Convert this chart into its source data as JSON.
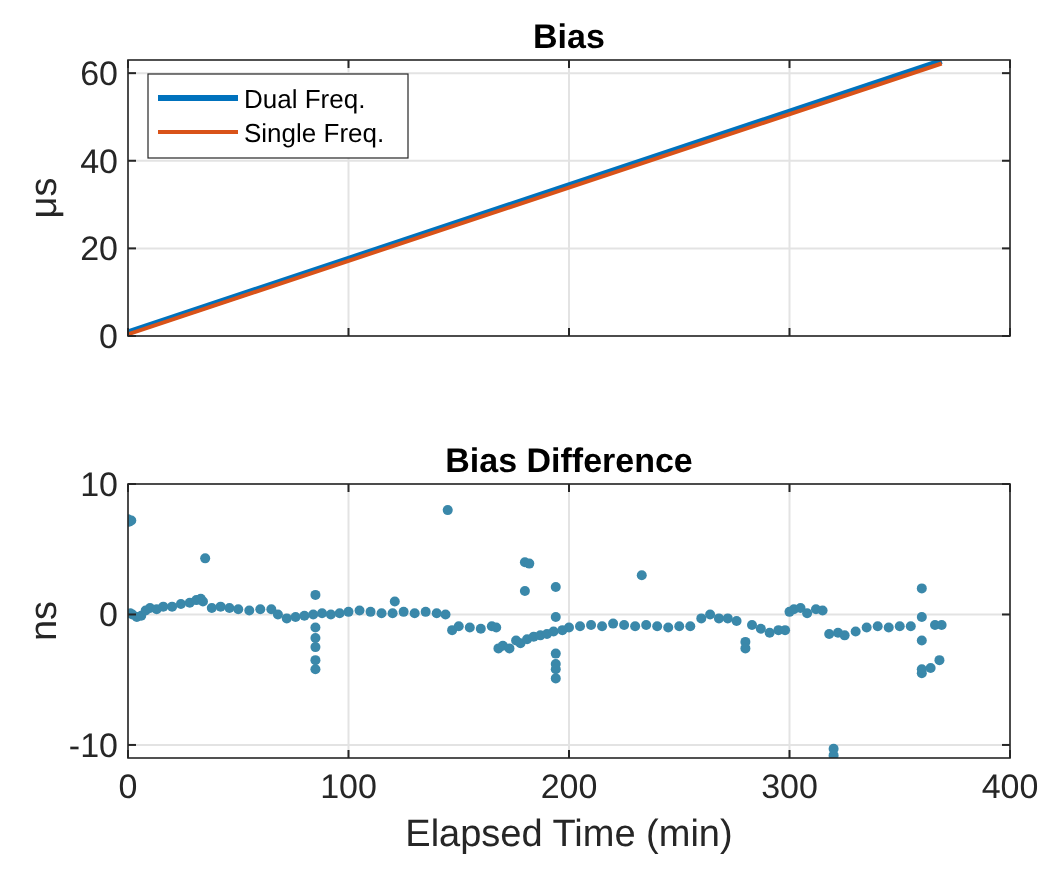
{
  "chart_data": [
    {
      "type": "line",
      "title": "Bias",
      "ylabel": "μs",
      "xlim": [
        0,
        400
      ],
      "xticks": [
        0,
        100,
        200,
        300,
        400
      ],
      "ylim": [
        0,
        63
      ],
      "yticks": [
        0,
        20,
        40,
        60
      ],
      "grid": true,
      "legend": "top left",
      "tick_labels": "y",
      "series": [
        {
          "name": "Dual Freq.",
          "color": "#0072bd",
          "x": [
            0,
            369
          ],
          "values": [
            0.8,
            62.8
          ]
        },
        {
          "name": "Single Freq.",
          "color": "#d95319",
          "x": [
            0,
            369
          ],
          "values": [
            0.4,
            62.2
          ]
        }
      ]
    },
    {
      "type": "scatter",
      "title": "Bias Difference",
      "xlabel": "Elapsed Time (min)",
      "ylabel": "ns",
      "xlim": [
        0,
        400
      ],
      "xticks": [
        0,
        100,
        200,
        300,
        400
      ],
      "ylim": [
        -11,
        10
      ],
      "yticks": [
        -10,
        0,
        10
      ],
      "grid": true,
      "marker": "circle",
      "series": [
        {
          "color": "#3a88aa",
          "x": [
            0,
            0.5,
            1,
            1.5,
            2,
            4,
            6,
            8,
            10,
            13,
            16,
            20,
            24,
            28,
            31,
            33,
            34,
            35,
            38,
            42,
            46,
            50,
            55,
            60,
            65,
            68,
            72,
            76,
            80,
            84,
            85,
            85,
            85,
            85,
            85,
            85,
            88,
            92,
            96,
            100,
            105,
            110,
            115,
            120,
            121,
            125,
            130,
            135,
            140,
            144,
            145,
            147,
            150,
            155,
            160,
            165,
            167,
            168,
            170,
            173,
            176,
            178,
            180,
            180,
            181,
            182,
            184,
            187,
            190,
            193,
            194,
            194,
            194,
            194,
            194,
            194,
            197,
            200,
            205,
            210,
            215,
            220,
            225,
            230,
            233,
            235,
            240,
            245,
            250,
            255,
            260,
            264,
            268,
            272,
            276,
            280,
            280,
            283,
            287,
            291,
            295,
            298,
            300,
            302,
            305,
            308,
            312,
            315,
            318,
            320,
            320,
            322,
            325,
            330,
            335,
            340,
            345,
            350,
            355,
            360,
            360,
            360,
            360,
            360,
            364,
            366,
            368,
            369
          ],
          "values": [
            7.3,
            7.1,
            0.1,
            7.2,
            0,
            -0.2,
            -0.1,
            0.3,
            0.5,
            0.4,
            0.6,
            0.6,
            0.8,
            0.9,
            1.1,
            1.2,
            1.0,
            4.3,
            0.5,
            0.6,
            0.5,
            0.4,
            0.3,
            0.4,
            0.4,
            0,
            -0.3,
            -0.2,
            -0.1,
            0,
            1.5,
            -1,
            -1.8,
            -2.5,
            -3.5,
            -4.2,
            0.1,
            0,
            0.1,
            0.2,
            0.3,
            0.2,
            0.1,
            0.1,
            1,
            0.2,
            0.1,
            0.2,
            0.1,
            0,
            8,
            -1.2,
            -0.9,
            -1,
            -1.1,
            -0.9,
            -1,
            -2.6,
            -2.4,
            -2.6,
            -2.0,
            -2.2,
            4,
            1.8,
            -1.9,
            3.9,
            -1.7,
            -1.6,
            -1.5,
            -1.3,
            2.1,
            -3,
            -3.8,
            -4.2,
            -4.9,
            -0.2,
            -1.2,
            -1,
            -0.9,
            -0.8,
            -0.9,
            -0.7,
            -0.8,
            -0.9,
            3,
            -0.8,
            -0.9,
            -1,
            -0.9,
            -0.9,
            -0.3,
            0,
            -0.3,
            -0.3,
            -0.5,
            -2.1,
            -2.6,
            -0.8,
            -1.1,
            -1.4,
            -1.2,
            -1.2,
            0.2,
            0.4,
            0.5,
            0.1,
            0.4,
            0.3,
            -1.5,
            -10.3,
            -10.8,
            -1.4,
            -1.6,
            -1.3,
            -1.0,
            -0.9,
            -1.0,
            -0.9,
            -0.9,
            2,
            -0.2,
            -2,
            -4.5,
            -4.2,
            -4.1,
            -0.8,
            -3.5,
            -0.8
          ]
        }
      ]
    }
  ]
}
